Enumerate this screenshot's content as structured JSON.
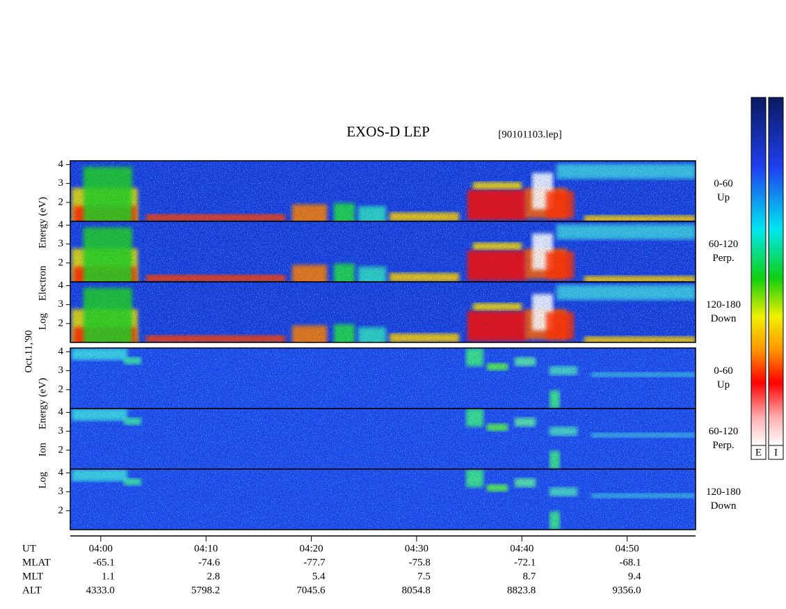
{
  "chart_data": {
    "type": "spectrogram",
    "title": "EXOS-D LEP",
    "file_label": "[90101103.lep]",
    "date_label": "Oct.11,'90",
    "xlim": [
      237.1,
      296.5
    ],
    "xticks": [
      {
        "value": 240,
        "label": "04:00"
      },
      {
        "value": 250,
        "label": "04:10"
      },
      {
        "value": 260,
        "label": "04:20"
      },
      {
        "value": 270,
        "label": "04:30"
      },
      {
        "value": 280,
        "label": "04:40"
      },
      {
        "value": 290,
        "label": "04:50"
      }
    ],
    "x_label": "UT",
    "groups": [
      {
        "ylabel": [
          "Log",
          "Electron",
          "Energy (eV)"
        ],
        "panels": [
          {
            "angle": "0-60",
            "direction": "Up",
            "ylim": [
              1,
              4.2
            ],
            "yticks": [
              2,
              3,
              4
            ]
          },
          {
            "angle": "60-120",
            "direction": "Perp.",
            "ylim": [
              1,
              4.2
            ],
            "yticks": [
              2,
              3,
              4
            ]
          },
          {
            "angle": "120-180",
            "direction": "Down",
            "ylim": [
              1,
              4.2
            ],
            "yticks": [
              2,
              3,
              4
            ]
          }
        ]
      },
      {
        "ylabel": [
          "Log",
          "Ion",
          "Energy (eV)"
        ],
        "panels": [
          {
            "angle": "0-60",
            "direction": "Up",
            "ylim": [
              1,
              4.2
            ],
            "yticks": [
              2,
              3,
              4
            ]
          },
          {
            "angle": "60-120",
            "direction": "Perp.",
            "ylim": [
              1,
              4.2
            ],
            "yticks": [
              2,
              3,
              4
            ]
          },
          {
            "angle": "120-180",
            "direction": "Down",
            "ylim": [
              1,
              4.2
            ],
            "yticks": [
              2,
              3,
              4
            ]
          }
        ]
      }
    ],
    "ephemeris": [
      {
        "name": "MLAT",
        "values": [
          -65.1,
          -74.6,
          -77.7,
          -75.8,
          -72.1,
          -68.1
        ]
      },
      {
        "name": "MLT",
        "values": [
          1.1,
          2.8,
          5.4,
          7.5,
          8.7,
          9.4
        ]
      },
      {
        "name": "ALT",
        "values": [
          4333,
          5798.2,
          7045.6,
          8054.8,
          8823.8,
          9356
        ],
        "value_labels": [
          "4333.0",
          "5798.2",
          "7045.6",
          "8054.8",
          "8823.8",
          "9356.0"
        ]
      }
    ],
    "colorbars": [
      "E",
      "I"
    ]
  }
}
